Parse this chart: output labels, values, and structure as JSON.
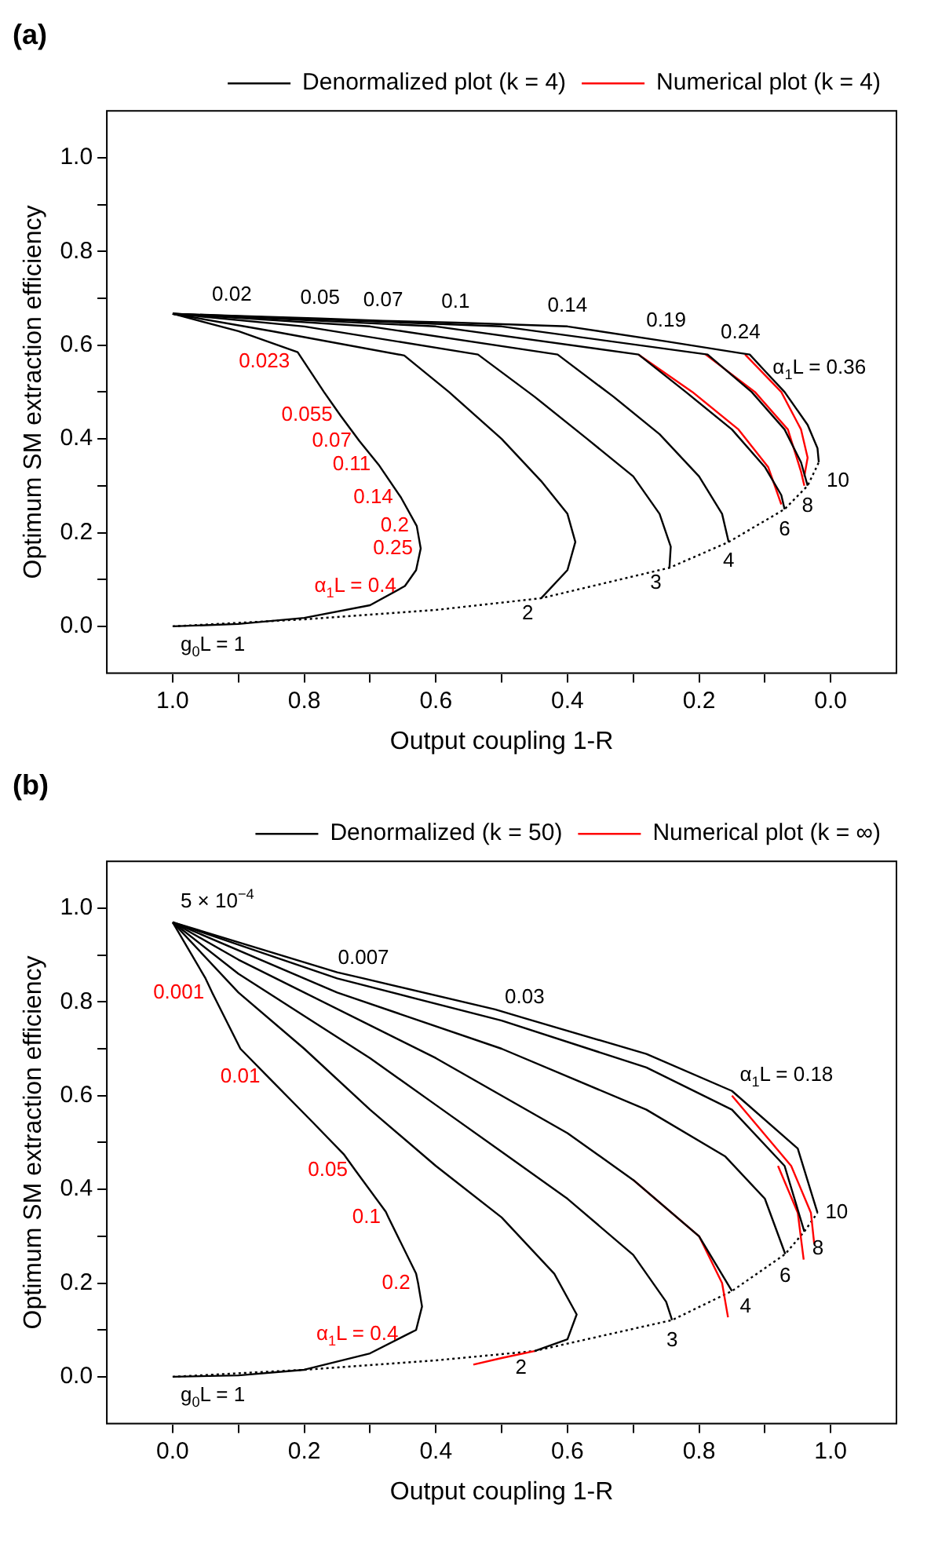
{
  "chart_data": [
    {
      "type": "line",
      "title": "(a)",
      "xlabel": "Output coupling 1-R",
      "ylabel": "Optimum SM extraction efficiency",
      "xlim": [
        1.1,
        -0.1
      ],
      "ylim": [
        -0.1,
        1.1
      ],
      "xticks": [
        {
          "value": 1.0,
          "label": "1.0"
        },
        {
          "value": 0.9,
          "label": null
        },
        {
          "value": 0.8,
          "label": "0.8"
        },
        {
          "value": 0.7,
          "label": null
        },
        {
          "value": 0.6,
          "label": "0.6"
        },
        {
          "value": 0.5,
          "label": null
        },
        {
          "value": 0.4,
          "label": "0.4"
        },
        {
          "value": 0.3,
          "label": null
        },
        {
          "value": 0.2,
          "label": "0.2"
        },
        {
          "value": 0.1,
          "label": null
        },
        {
          "value": 0,
          "label": "0.0"
        }
      ],
      "yticks": [
        {
          "value": 0,
          "label": "0.0"
        },
        {
          "value": 0.1,
          "label": null
        },
        {
          "value": 0.2,
          "label": "0.2"
        },
        {
          "value": 0.3,
          "label": null
        },
        {
          "value": 0.4,
          "label": "0.4"
        },
        {
          "value": 0.5,
          "label": null
        },
        {
          "value": 0.6,
          "label": "0.6"
        },
        {
          "value": 0.7,
          "label": null
        },
        {
          "value": 0.8,
          "label": "0.8"
        },
        {
          "value": 0.9,
          "label": null
        },
        {
          "value": 1.0,
          "label": "1.0"
        }
      ],
      "grid": false,
      "legend": "top right",
      "series": [
        {
          "name": "Denormalized plot (k = 4)",
          "color": "#000000",
          "x": [
            1,
            0.9,
            0.81,
            0.77,
            0.745,
            0.716,
            0.687,
            0.653,
            0.629,
            0.623,
            0.63,
            0.647,
            0.7,
            0.8,
            0.9,
            1
          ],
          "values": [
            0.667,
            0.63,
            0.585,
            0.5,
            0.45,
            0.395,
            0.345,
            0.275,
            0.214,
            0.166,
            0.12,
            0.086,
            0.045,
            0.018,
            0.005,
            0
          ]
        },
        {
          "color": "#000000",
          "x": [
            1,
            0.85,
            0.648,
            0.58,
            0.5,
            0.44,
            0.4,
            0.388,
            0.4,
            0.44
          ],
          "values": [
            0.667,
            0.63,
            0.578,
            0.5,
            0.4,
            0.31,
            0.24,
            0.18,
            0.12,
            0.06
          ]
        },
        {
          "color": "#000000",
          "x": [
            1,
            0.8,
            0.536,
            0.45,
            0.37,
            0.3,
            0.26,
            0.243,
            0.245
          ],
          "values": [
            0.667,
            0.64,
            0.58,
            0.49,
            0.4,
            0.32,
            0.24,
            0.17,
            0.125
          ]
        },
        {
          "color": "#000000",
          "x": [
            1,
            0.7,
            0.415,
            0.33,
            0.26,
            0.2,
            0.165,
            0.155
          ],
          "values": [
            0.667,
            0.64,
            0.58,
            0.49,
            0.41,
            0.32,
            0.24,
            0.18
          ]
        },
        {
          "color": "#000000",
          "x": [
            1,
            0.6,
            0.292,
            0.22,
            0.15,
            0.1,
            0.075,
            0.07
          ],
          "values": [
            0.667,
            0.64,
            0.58,
            0.5,
            0.42,
            0.34,
            0.28,
            0.25
          ]
        },
        {
          "color": "#000000",
          "x": [
            1,
            0.5,
            0.187,
            0.12,
            0.07,
            0.045,
            0.035
          ],
          "values": [
            0.667,
            0.64,
            0.58,
            0.5,
            0.42,
            0.35,
            0.3
          ]
        },
        {
          "color": "#000000",
          "x": [
            1,
            0.91,
            0.776,
            0.68,
            0.57,
            0.4,
            0.25,
            0.137,
            0.123,
            0.1,
            0.07,
            0.035,
            0.02,
            0.018
          ],
          "values": [
            0.667,
            0.663,
            0.657,
            0.652,
            0.648,
            0.64,
            0.608,
            0.583,
            0.58,
            0.545,
            0.5,
            0.43,
            0.38,
            0.35
          ]
        },
        {
          "name": "Numerical plot (k = 4)",
          "color": "#ff0000",
          "x": [
            0.292,
            0.21,
            0.14,
            0.095,
            0.075
          ],
          "values": [
            0.58,
            0.5,
            0.42,
            0.34,
            0.26
          ]
        },
        {
          "color": "#ff0000",
          "x": [
            0.19,
            0.115,
            0.065,
            0.045,
            0.04
          ],
          "values": [
            0.58,
            0.5,
            0.42,
            0.33,
            0.3
          ]
        },
        {
          "color": "#ff0000",
          "x": [
            0.13,
            0.075,
            0.045,
            0.035,
            0.04
          ],
          "values": [
            0.58,
            0.5,
            0.42,
            0.36,
            0.32
          ]
        },
        {
          "color": "#000000",
          "line_style": "dotted",
          "x": [
            1,
            0.8,
            0.6,
            0.44,
            0.245,
            0.155,
            0.07,
            0.035,
            0.018
          ],
          "values": [
            0,
            0.015,
            0.035,
            0.06,
            0.125,
            0.18,
            0.25,
            0.3,
            0.35
          ]
        }
      ],
      "annotations": [
        {
          "text": "0.02",
          "x": 0.91,
          "y": 0.663
        },
        {
          "text": "0.05",
          "x": 0.776,
          "y": 0.657
        },
        {
          "text": "0.07",
          "x": 0.68,
          "y": 0.652
        },
        {
          "text": "0.1",
          "x": 0.57,
          "y": 0.648
        },
        {
          "text": "0.14",
          "x": 0.4,
          "y": 0.64
        },
        {
          "text": "0.19",
          "x": 0.25,
          "y": 0.608
        },
        {
          "text": "0.24",
          "x": 0.137,
          "y": 0.583
        },
        {
          "text": "α$_{1}$L = 0.36",
          "x": 0.1,
          "y": 0.545
        },
        {
          "text": "g$_{0}$L = 1",
          "x": 1,
          "y": 0
        },
        {
          "text": "2",
          "x": 0.44,
          "y": 0.06
        },
        {
          "text": "3",
          "x": 0.245,
          "y": 0.125
        },
        {
          "text": "4",
          "x": 0.155,
          "y": 0.18
        },
        {
          "text": "6",
          "x": 0.07,
          "y": 0.25
        },
        {
          "text": "8",
          "x": 0.035,
          "y": 0.3
        },
        {
          "text": "10",
          "x": 0.018,
          "y": 0.35
        },
        {
          "text": "0.023",
          "x": 0.81,
          "y": 0.585
        },
        {
          "text": "0.055",
          "x": 0.745,
          "y": 0.45
        },
        {
          "text": "0.07",
          "x": 0.716,
          "y": 0.395
        },
        {
          "text": "0.11",
          "x": 0.687,
          "y": 0.345
        },
        {
          "text": "0.14",
          "x": 0.653,
          "y": 0.275
        },
        {
          "text": "0.2",
          "x": 0.629,
          "y": 0.214
        },
        {
          "text": "0.25",
          "x": 0.623,
          "y": 0.166
        },
        {
          "text": "α$_{1}$L = 0.4",
          "x": 0.647,
          "y": 0.086
        }
      ]
    },
    {
      "type": "line",
      "title": "(b)",
      "xlabel": "Output coupling 1-R",
      "ylabel": "Optimum SM extraction efficiency",
      "xlim": [
        -0.1,
        1.1
      ],
      "ylim": [
        -0.1,
        1.1
      ],
      "xticks": [
        {
          "value": 0,
          "label": "0.0"
        },
        {
          "value": 0.1,
          "label": null
        },
        {
          "value": 0.2,
          "label": "0.2"
        },
        {
          "value": 0.3,
          "label": null
        },
        {
          "value": 0.4,
          "label": "0.4"
        },
        {
          "value": 0.5,
          "label": null
        },
        {
          "value": 0.6,
          "label": "0.6"
        },
        {
          "value": 0.7,
          "label": null
        },
        {
          "value": 0.8,
          "label": "0.8"
        },
        {
          "value": 0.9,
          "label": null
        },
        {
          "value": 1.0,
          "label": "1.0"
        }
      ],
      "yticks": [
        {
          "value": 0,
          "label": "0.0"
        },
        {
          "value": 0.1,
          "label": null
        },
        {
          "value": 0.2,
          "label": "0.2"
        },
        {
          "value": 0.3,
          "label": null
        },
        {
          "value": 0.4,
          "label": "0.4"
        },
        {
          "value": 0.5,
          "label": null
        },
        {
          "value": 0.6,
          "label": "0.6"
        },
        {
          "value": 0.7,
          "label": null
        },
        {
          "value": 0.8,
          "label": "0.8"
        },
        {
          "value": 0.9,
          "label": null
        },
        {
          "value": 1.0,
          "label": "1.0"
        }
      ],
      "grid": false,
      "legend": "top right",
      "series": [
        {
          "name": "Denormalized (k = 50)",
          "color": "#000000",
          "x": [
            0,
            0.05,
            0.06,
            0.103,
            0.145,
            0.213,
            0.26,
            0.278,
            0.324,
            0.328,
            0.37,
            0.373,
            0.379,
            0.37,
            0.356,
            0.3,
            0.2,
            0.1,
            0
          ],
          "values": [
            0.97,
            0.85,
            0.82,
            0.7,
            0.64,
            0.543,
            0.475,
            0.44,
            0.352,
            0.34,
            0.22,
            0.2,
            0.15,
            0.1,
            0.09,
            0.05,
            0.015,
            0.003,
            0
          ]
        },
        {
          "color": "#000000",
          "x": [
            0,
            0.1,
            0.2,
            0.3,
            0.4,
            0.5,
            0.58,
            0.614,
            0.6,
            0.55
          ],
          "values": [
            0.97,
            0.82,
            0.7,
            0.57,
            0.45,
            0.34,
            0.22,
            0.133,
            0.08,
            0.055
          ]
        },
        {
          "color": "#000000",
          "x": [
            0,
            0.1,
            0.2,
            0.3,
            0.4,
            0.5,
            0.6,
            0.7,
            0.75,
            0.759
          ],
          "values": [
            0.97,
            0.86,
            0.77,
            0.68,
            0.58,
            0.48,
            0.38,
            0.26,
            0.16,
            0.121
          ]
        },
        {
          "color": "#000000",
          "x": [
            0,
            0.1,
            0.2,
            0.3,
            0.4,
            0.5,
            0.6,
            0.7,
            0.8,
            0.85
          ],
          "values": [
            0.97,
            0.89,
            0.82,
            0.75,
            0.68,
            0.6,
            0.52,
            0.42,
            0.3,
            0.183
          ]
        },
        {
          "color": "#000000",
          "x": [
            0,
            0.25,
            0.5,
            0.72,
            0.84,
            0.9,
            0.931
          ],
          "values": [
            0.97,
            0.82,
            0.7,
            0.57,
            0.47,
            0.38,
            0.262
          ]
        },
        {
          "color": "#000000",
          "x": [
            0,
            0.25,
            0.5,
            0.72,
            0.85,
            0.93,
            0.96
          ],
          "values": [
            0.97,
            0.85,
            0.76,
            0.66,
            0.57,
            0.45,
            0.31
          ]
        },
        {
          "color": "#000000",
          "x": [
            0,
            0.25,
            0.29,
            0.49,
            0.535,
            0.72,
            0.85,
            0.95,
            0.98
          ],
          "values": [
            0.97,
            0.863,
            0.85,
            0.784,
            0.765,
            0.689,
            0.61,
            0.487,
            0.35
          ]
        },
        {
          "name": "Numerical plot (k = ∞)",
          "color": "#ff0000",
          "x": [
            0.457,
            0.5,
            0.55
          ],
          "values": [
            0.026,
            0.04,
            0.055
          ]
        },
        {
          "color": "#ff0000",
          "x": [
            0.7,
            0.8,
            0.835,
            0.844
          ],
          "values": [
            0.42,
            0.3,
            0.2,
            0.127
          ]
        },
        {
          "color": "#ff0000",
          "x": [
            0.92,
            0.95,
            0.959
          ],
          "values": [
            0.45,
            0.35,
            0.25
          ]
        },
        {
          "color": "#ff0000",
          "x": [
            0.85,
            0.94,
            0.97,
            0.975
          ],
          "values": [
            0.6,
            0.45,
            0.35,
            0.284
          ]
        },
        {
          "color": "#000000",
          "line_style": "dotted",
          "x": [
            0,
            0.2,
            0.4,
            0.55,
            0.759,
            0.85,
            0.931,
            0.96,
            0.98
          ],
          "values": [
            0,
            0.015,
            0.035,
            0.055,
            0.121,
            0.183,
            0.262,
            0.31,
            0.35
          ]
        }
      ],
      "annotations": [
        {
          "text": "5 × 10$^{−4}$",
          "x": 0,
          "y": 0.97
        },
        {
          "text": "0.007",
          "x": 0.29,
          "y": 0.85
        },
        {
          "text": "0.03",
          "x": 0.535,
          "y": 0.765
        },
        {
          "text": "α$_{1}$L = 0.18",
          "x": 0.85,
          "y": 0.61
        },
        {
          "text": "g$_{0}$L = 1",
          "x": 0,
          "y": 0
        },
        {
          "text": "2",
          "x": 0.55,
          "y": 0.055
        },
        {
          "text": "3",
          "x": 0.759,
          "y": 0.121
        },
        {
          "text": "4",
          "x": 0.85,
          "y": 0.183
        },
        {
          "text": "6",
          "x": 0.931,
          "y": 0.262
        },
        {
          "text": "8",
          "x": 0.96,
          "y": 0.31
        },
        {
          "text": "10",
          "x": 0.98,
          "y": 0.35
        },
        {
          "text": "0.001",
          "x": 0.06,
          "y": 0.82
        },
        {
          "text": "0.01",
          "x": 0.145,
          "y": 0.64
        },
        {
          "text": "0.05",
          "x": 0.278,
          "y": 0.44
        },
        {
          "text": "0.1",
          "x": 0.328,
          "y": 0.34
        },
        {
          "text": "0.2",
          "x": 0.373,
          "y": 0.2
        },
        {
          "text": "α$_{1}$L = 0.4",
          "x": 0.356,
          "y": 0.09
        }
      ]
    }
  ]
}
